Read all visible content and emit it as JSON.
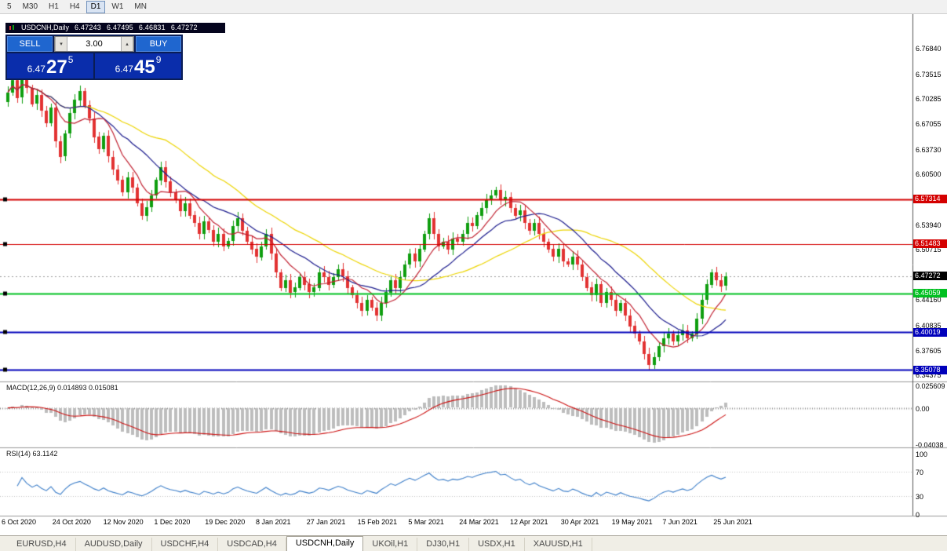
{
  "toolbar": {
    "timeframes": [
      {
        "label": "5",
        "active": false
      },
      {
        "label": "M30",
        "active": false
      },
      {
        "label": "H1",
        "active": false
      },
      {
        "label": "H4",
        "active": false
      },
      {
        "label": "D1",
        "active": true
      },
      {
        "label": "W1",
        "active": false
      },
      {
        "label": "MN",
        "active": false
      }
    ]
  },
  "chart_header": {
    "symbol": "USDCNH,Daily",
    "open": "6.47243",
    "high": "6.47495",
    "low": "6.46831",
    "close": "6.47272"
  },
  "trade_panel": {
    "sell_label": "SELL",
    "buy_label": "BUY",
    "volume": "3.00",
    "volume_up_icon": "▴",
    "volume_down_icon": "▾",
    "sell_price": {
      "prefix": "6.47",
      "big": "27",
      "sup": "5"
    },
    "buy_price": {
      "prefix": "6.47",
      "big": "45",
      "sup": "9"
    }
  },
  "indicators": {
    "macd_label": "MACD(12,26,9) 0.014893 0.015081",
    "rsi_label": "RSI(14) 63.1142"
  },
  "axis": {
    "price_ticks": [
      "6.76840",
      "6.73515",
      "6.70285",
      "6.67055",
      "6.63730",
      "6.60500",
      "6.53940",
      "6.50715",
      "6.44160",
      "6.40835",
      "6.37605",
      "6.34375"
    ],
    "macd_ticks": [
      "0.025609",
      "0.00",
      "-0.04038"
    ],
    "rsi_ticks": [
      "100",
      "70",
      "30",
      "0"
    ]
  },
  "levels": [
    {
      "price": 6.57314,
      "label": "6.57314",
      "color": "#d40000",
      "width": 2
    },
    {
      "price": 6.51483,
      "label": "6.51483",
      "color": "#d40000",
      "width": 1
    },
    {
      "price": 6.45059,
      "label": "6.45059",
      "color": "#00c020",
      "width": 2
    },
    {
      "price": 6.40019,
      "label": "6.40019",
      "color": "#0000bb",
      "width": 2
    },
    {
      "price": 6.35078,
      "label": "6.35078",
      "color": "#0000bb",
      "width": 2
    }
  ],
  "current_price": {
    "label": "6.47272",
    "price": 6.47272,
    "color": "#000000"
  },
  "dates": [
    "6 Oct 2020",
    "24 Oct 2020",
    "12 Nov 2020",
    "1 Dec 2020",
    "19 Dec 2020",
    "8 Jan 2021",
    "27 Jan 2021",
    "15 Feb 2021",
    "5 Mar 2021",
    "24 Mar 2021",
    "12 Apr 2021",
    "30 Apr 2021",
    "19 May 2021",
    "7 Jun 2021",
    "25 Jun 2021"
  ],
  "tabs": [
    {
      "label": "EURUSD,H4",
      "active": false
    },
    {
      "label": "AUDUSD,Daily",
      "active": false
    },
    {
      "label": "USDCHF,H4",
      "active": false
    },
    {
      "label": "USDCAD,H4",
      "active": false
    },
    {
      "label": "USDCNH,Daily",
      "active": true
    },
    {
      "label": "UKOil,H1",
      "active": false
    },
    {
      "label": "DJ30,H1",
      "active": false
    },
    {
      "label": "USDX,H1",
      "active": false
    },
    {
      "label": "XAUUSD,H1",
      "active": false
    }
  ],
  "colors": {
    "up_candle": "#0f9e0f",
    "down_candle": "#e23232",
    "ma_fast": "#c02030",
    "ma_mid": "#1a1a8c",
    "ma_slow": "#ecd400",
    "macd_hist": "#bdbdbd",
    "macd_signal": "#cc1111",
    "rsi_line": "#3b7dc8",
    "level_red": "#d40000",
    "level_green": "#00c020",
    "level_blue": "#0000bb"
  },
  "chart_data": {
    "type": "candlestick",
    "symbol": "USDCNH",
    "timeframe": "Daily",
    "title": "USDCNH,Daily",
    "x_range": [
      "6 Oct 2020",
      "2 Jul 2021"
    ],
    "price_axis": {
      "min": 6.338,
      "max": 6.785
    },
    "macd_axis": {
      "min": -0.04038,
      "max": 0.025609
    },
    "rsi_axis": {
      "min": 0,
      "max": 100
    },
    "first_open": 6.7,
    "closes": [
      6.712,
      6.728,
      6.705,
      6.742,
      6.718,
      6.697,
      6.708,
      6.688,
      6.672,
      6.692,
      6.648,
      6.628,
      6.658,
      6.685,
      6.702,
      6.714,
      6.695,
      6.678,
      6.654,
      6.638,
      6.655,
      6.628,
      6.612,
      6.598,
      6.582,
      6.601,
      6.588,
      6.568,
      6.552,
      6.563,
      6.578,
      6.598,
      6.615,
      6.596,
      6.582,
      6.572,
      6.558,
      6.568,
      6.552,
      6.542,
      6.528,
      6.544,
      6.533,
      6.518,
      6.528,
      6.512,
      6.519,
      6.538,
      6.548,
      6.532,
      6.518,
      6.508,
      6.498,
      6.512,
      6.528,
      6.502,
      6.478,
      6.458,
      6.468,
      6.452,
      6.458,
      6.472,
      6.462,
      6.452,
      6.458,
      6.478,
      6.472,
      6.462,
      6.472,
      6.482,
      6.473,
      6.458,
      6.448,
      6.438,
      6.428,
      6.442,
      6.432,
      6.422,
      6.438,
      6.452,
      6.468,
      6.458,
      6.472,
      6.488,
      6.502,
      6.492,
      6.508,
      6.528,
      6.548,
      6.528,
      6.512,
      6.518,
      6.508,
      6.522,
      6.518,
      6.528,
      6.542,
      6.538,
      6.552,
      6.562,
      6.572,
      6.578,
      6.585,
      6.572,
      6.576,
      6.562,
      6.552,
      6.558,
      6.542,
      6.532,
      6.542,
      6.528,
      6.518,
      6.508,
      6.498,
      6.508,
      6.492,
      6.488,
      6.498,
      6.488,
      6.472,
      6.458,
      6.448,
      6.462,
      6.438,
      6.452,
      6.442,
      6.428,
      6.438,
      6.422,
      6.408,
      6.398,
      6.388,
      6.372,
      6.358,
      6.368,
      6.382,
      6.392,
      6.398,
      6.388,
      6.396,
      6.402,
      6.392,
      6.398,
      6.418,
      6.442,
      6.462,
      6.478,
      6.468,
      6.46,
      6.4727
    ],
    "indicators": {
      "ma_fast_period": 8,
      "ma_mid_period": 17,
      "ma_slow_period": 34,
      "macd_params": [
        12,
        26,
        9
      ],
      "macd_display_values": [
        0.014893,
        0.015081
      ],
      "rsi_period": 14,
      "rsi_display_value": 63.1142
    },
    "levels": [
      6.57314,
      6.51483,
      6.45059,
      6.40019,
      6.35078
    ],
    "current_price": 6.47272
  }
}
